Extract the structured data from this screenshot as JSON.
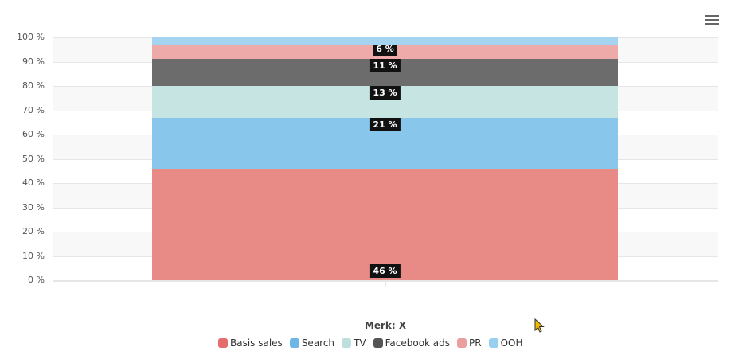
{
  "toolbar": {
    "menu_icon": "hamburger-menu-icon"
  },
  "chart_data": {
    "type": "bar",
    "stacking": "percent",
    "title": "",
    "xlabel": "Merk: X",
    "ylabel": "",
    "categories": [
      "Merk: X"
    ],
    "ylim": [
      0,
      100
    ],
    "yticks": [
      "0 %",
      "10 %",
      "20 %",
      "30 %",
      "40 %",
      "50 %",
      "60 %",
      "70 %",
      "80 %",
      "90 %",
      "100 %"
    ],
    "grid": true,
    "legend_position": "bottom",
    "series": [
      {
        "name": "Basis sales",
        "values": [
          46
        ],
        "color": "#e88a86",
        "legend_color": "#e36d6a",
        "label": "46 %"
      },
      {
        "name": "Search",
        "values": [
          21
        ],
        "color": "#88c6ec",
        "legend_color": "#6cb6e8",
        "label": "21 %"
      },
      {
        "name": "TV",
        "values": [
          13
        ],
        "color": "#c6e4e2",
        "legend_color": "#bde0de",
        "label": "13 %"
      },
      {
        "name": "Facebook ads",
        "values": [
          11
        ],
        "color": "#6c6c6c",
        "legend_color": "#555555",
        "label": "11 %"
      },
      {
        "name": "PR",
        "values": [
          6
        ],
        "color": "#eea9a9",
        "legend_color": "#eb9e9e",
        "label": "6 %"
      },
      {
        "name": "OOH",
        "values": [
          3
        ],
        "color": "#a4d4f0",
        "legend_color": "#98cff0",
        "label": ""
      }
    ]
  },
  "legend": {
    "items": [
      {
        "label": "Basis sales",
        "color": "#e36d6a"
      },
      {
        "label": "Search",
        "color": "#6cb6e8"
      },
      {
        "label": "TV",
        "color": "#bde0de"
      },
      {
        "label": "Facebook ads",
        "color": "#555555"
      },
      {
        "label": "PR",
        "color": "#eb9e9e"
      },
      {
        "label": "OOH",
        "color": "#98cff0"
      }
    ]
  }
}
